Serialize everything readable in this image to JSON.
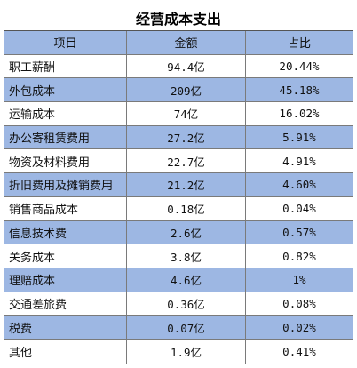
{
  "table": {
    "title": "经营成本支出",
    "headers": [
      "项目",
      "金额",
      "占比"
    ],
    "rows": [
      {
        "item": "职工薪酬",
        "amount": "94.4亿",
        "ratio": "20.44%"
      },
      {
        "item": "外包成本",
        "amount": "209亿",
        "ratio": "45.18%"
      },
      {
        "item": "运输成本",
        "amount": "74亿",
        "ratio": "16.02%"
      },
      {
        "item": "办公寄租赁费用",
        "amount": "27.2亿",
        "ratio": "5.91%"
      },
      {
        "item": "物资及材料费用",
        "amount": "22.7亿",
        "ratio": "4.91%"
      },
      {
        "item": "折旧费用及摊销费用",
        "amount": "21.2亿",
        "ratio": "4.60%"
      },
      {
        "item": "销售商品成本",
        "amount": "0.18亿",
        "ratio": "0.04%"
      },
      {
        "item": "信息技术费",
        "amount": "2.6亿",
        "ratio": "0.57%"
      },
      {
        "item": "关务成本",
        "amount": "3.8亿",
        "ratio": "0.82%"
      },
      {
        "item": "理赔成本",
        "amount": "4.6亿",
        "ratio": "1%"
      },
      {
        "item": "交通差旅费",
        "amount": "0.36亿",
        "ratio": "0.08%"
      },
      {
        "item": "税费",
        "amount": "0.07亿",
        "ratio": "0.02%"
      },
      {
        "item": "其他",
        "amount": "1.9亿",
        "ratio": "0.41%"
      }
    ]
  }
}
